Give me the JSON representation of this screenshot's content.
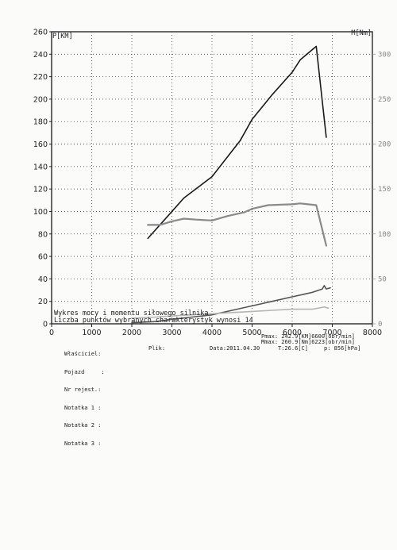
{
  "chart_data": {
    "type": "line",
    "ylabel_left": "P[KM]",
    "ylabel_right": "M[Nm]",
    "xlim": [
      0,
      8000
    ],
    "ylim_left": [
      0,
      260
    ],
    "ylim_right": [
      0,
      325
    ],
    "x_ticks": [
      "0",
      "1000",
      "2000",
      "3000",
      "4000",
      "5000",
      "6000",
      "7000",
      "8000"
    ],
    "y_ticks_left": [
      "0",
      "20",
      "40",
      "60",
      "80",
      "100",
      "120",
      "140",
      "160",
      "180",
      "200",
      "220",
      "240",
      "260"
    ],
    "y_ticks_right": [
      "0",
      "50",
      "100",
      "150",
      "200",
      "250",
      "300"
    ],
    "grid": true,
    "series": [
      {
        "key": "power",
        "color": "#1a1a1a",
        "x": [
          2400,
          2800,
          3300,
          4000,
          4700,
          5000,
          5500,
          6000,
          6200,
          6600,
          6850
        ],
        "y": [
          76,
          92,
          112,
          131,
          163,
          182,
          204,
          224,
          235,
          247,
          166
        ]
      },
      {
        "key": "torque",
        "color": "#8a8a8a",
        "x": [
          2400,
          2700,
          3000,
          3300,
          3600,
          4000,
          4400,
          4800,
          5000,
          5400,
          6000,
          6200,
          6600,
          6850
        ],
        "y": [
          110,
          110,
          114,
          117,
          116,
          115,
          120,
          124,
          128,
          132,
          133,
          134,
          132,
          87
        ]
      },
      {
        "key": "loss_1",
        "color": "#555555",
        "x": [
          2000,
          2600,
          3000,
          3500,
          4000,
          4500,
          5000,
          5500,
          6000,
          6500,
          6750,
          6800,
          6850,
          6950
        ],
        "y": [
          1,
          2,
          4,
          6,
          8,
          12,
          16,
          20,
          24,
          28,
          31,
          34,
          31,
          32
        ]
      },
      {
        "key": "loss_2",
        "color": "#b5b5b5",
        "x": [
          2000,
          2600,
          3000,
          3500,
          4000,
          4500,
          5000,
          5500,
          6000,
          6500,
          6800,
          6900
        ],
        "y": [
          5,
          6,
          7,
          8,
          9,
          10,
          11,
          12,
          13,
          13,
          15,
          14
        ]
      }
    ],
    "annotations": [
      "Wykres mocy i momentu siłowego silnika",
      "Liczba punktów wybranych charakterystyk wynosi 14"
    ]
  },
  "info_left": [
    "Właściciel:",
    "Pojazd     :",
    "Nr rejest.:",
    "Notatka 1 :",
    "Notatka 2 :",
    "Notatka 3 :"
  ],
  "info_plik": "Plik:",
  "info_date": "Data:2011.04.30",
  "info_temp": "T:26.6[C]",
  "info_pressure": "p: 856[hPa]",
  "info_pmax": "Pmax: 242.9[KM]6600[obr/min]",
  "info_mmax": "Mmax: 260.9[Nm]6223[obr/min]"
}
